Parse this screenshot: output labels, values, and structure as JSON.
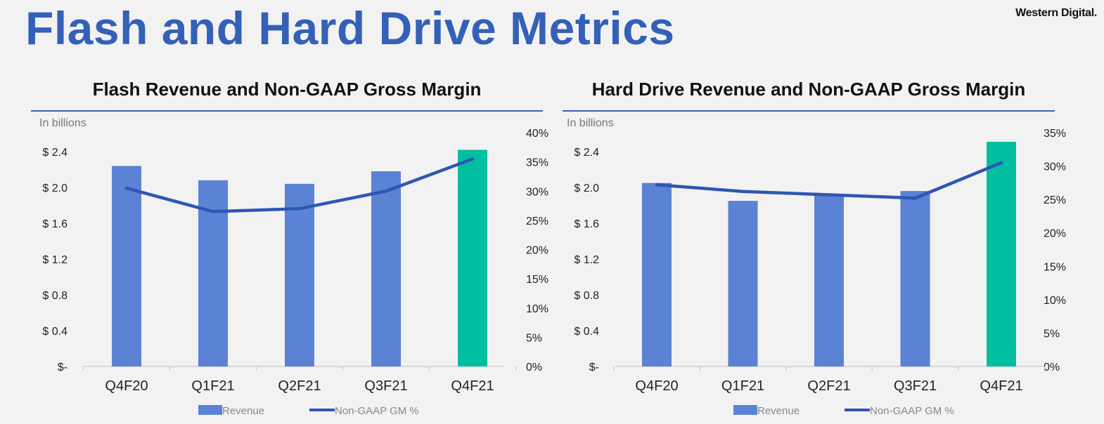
{
  "page": {
    "title": "Flash and Hard Drive Metrics",
    "logo": "Western Digital."
  },
  "colors": {
    "title": "#3461b8",
    "bar": "#5b82d4",
    "bar_highlight": "#00bfa0",
    "line": "#2e56b3",
    "rule": "#3a64c0"
  },
  "chart_data": [
    {
      "type": "bar",
      "title": "Flash Revenue and Non-GAAP Gross Margin",
      "unit_note": "In billions",
      "categories": [
        "Q4F20",
        "Q1F21",
        "Q2F21",
        "Q3F21",
        "Q4F21"
      ],
      "series": [
        {
          "name": "Revenue",
          "type": "bar",
          "axis": "left",
          "values": [
            2.24,
            2.08,
            2.04,
            2.18,
            2.42
          ]
        },
        {
          "name": "Non-GAAP GM %",
          "type": "line",
          "axis": "right",
          "values": [
            30.5,
            26.5,
            27.0,
            30.0,
            35.5
          ]
        }
      ],
      "highlight_index": 4,
      "y_left": {
        "min": 0,
        "max": 2.4,
        "ticks": [
          "$-",
          "$ 0.4",
          "$ 0.8",
          "$ 1.2",
          "$ 1.6",
          "$ 2.0",
          "$ 2.4"
        ]
      },
      "y_right": {
        "min": 0,
        "max": 40,
        "ticks": [
          "0%",
          "5%",
          "10%",
          "15%",
          "20%",
          "25%",
          "30%",
          "35%",
          "40%"
        ]
      },
      "legend": [
        "Revenue",
        "Non-GAAP GM %"
      ],
      "legend_position": "bottom"
    },
    {
      "type": "bar",
      "title": "Hard Drive Revenue and Non-GAAP Gross Margin",
      "unit_note": "In billions",
      "categories": [
        "Q4F20",
        "Q1F21",
        "Q2F21",
        "Q3F21",
        "Q4F21"
      ],
      "series": [
        {
          "name": "Revenue",
          "type": "bar",
          "axis": "left",
          "values": [
            2.05,
            1.85,
            1.91,
            1.96,
            2.51
          ]
        },
        {
          "name": "Non-GAAP GM %",
          "type": "line",
          "axis": "right",
          "values": [
            27.2,
            26.2,
            25.7,
            25.2,
            30.5
          ]
        }
      ],
      "highlight_index": 4,
      "y_left": {
        "min": 0,
        "max": 2.4,
        "ticks": [
          "$-",
          "$ 0.4",
          "$ 0.8",
          "$ 1.2",
          "$ 1.6",
          "$ 2.0",
          "$ 2.4"
        ]
      },
      "y_right": {
        "min": 0,
        "max": 35,
        "ticks": [
          "0%",
          "5%",
          "10%",
          "15%",
          "20%",
          "25%",
          "30%",
          "35%"
        ]
      },
      "legend": [
        "Revenue",
        "Non-GAAP GM %"
      ],
      "legend_position": "bottom"
    }
  ]
}
